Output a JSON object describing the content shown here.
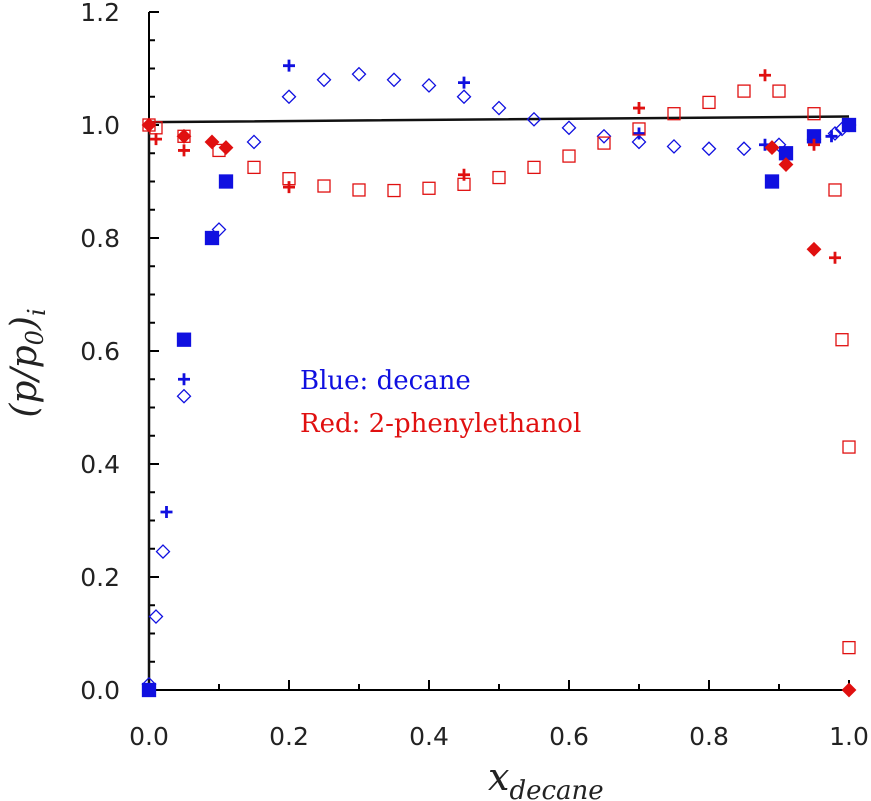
{
  "chart_data": {
    "type": "scatter",
    "title": "",
    "xlabel": {
      "base": "x",
      "sub": "decane"
    },
    "ylabel": {
      "open": "(",
      "p1": "p",
      "slash": "/",
      "p2": "p",
      "p2sub": "0",
      "close": ")",
      "sub": "i"
    },
    "xlim": [
      0.0,
      1.0
    ],
    "ylim": [
      0.0,
      1.2
    ],
    "x_ticks": [
      "0.0",
      "0.2",
      "0.4",
      "0.6",
      "0.8",
      "1.0"
    ],
    "y_ticks": [
      "0.0",
      "0.2",
      "0.4",
      "0.6",
      "0.8",
      "1.0",
      "1.2"
    ],
    "grid": false,
    "annotations": [
      {
        "text": "Blue: decane",
        "color": "#1010e0"
      },
      {
        "text": "Red: 2-phenylethanol",
        "color": "#e01010"
      }
    ],
    "colors": {
      "blue": "#1010e0",
      "red": "#e01010",
      "line": "#111111",
      "axis": "#000000"
    },
    "line": {
      "x": [
        0.0,
        0.0,
        1.0
      ],
      "y": [
        0.0,
        1.005,
        1.015
      ]
    },
    "series": [
      {
        "color": "blue",
        "marker": "diamond-open",
        "points": [
          [
            0.0,
            0.01
          ],
          [
            0.01,
            0.13
          ],
          [
            0.02,
            0.245
          ],
          [
            0.05,
            0.52
          ],
          [
            0.1,
            0.815
          ],
          [
            0.15,
            0.97
          ],
          [
            0.2,
            1.05
          ],
          [
            0.25,
            1.08
          ],
          [
            0.3,
            1.09
          ],
          [
            0.35,
            1.08
          ],
          [
            0.4,
            1.07
          ],
          [
            0.45,
            1.05
          ],
          [
            0.5,
            1.03
          ],
          [
            0.55,
            1.01
          ],
          [
            0.6,
            0.995
          ],
          [
            0.65,
            0.98
          ],
          [
            0.7,
            0.97
          ],
          [
            0.75,
            0.962
          ],
          [
            0.8,
            0.958
          ],
          [
            0.85,
            0.958
          ],
          [
            0.9,
            0.965
          ],
          [
            0.95,
            0.975
          ],
          [
            0.98,
            0.985
          ],
          [
            0.99,
            0.993
          ],
          [
            1.0,
            1.0
          ]
        ]
      },
      {
        "color": "blue",
        "marker": "square-filled",
        "points": [
          [
            0.0,
            0.0
          ],
          [
            0.05,
            0.62
          ],
          [
            0.09,
            0.8
          ],
          [
            0.11,
            0.9
          ],
          [
            0.89,
            0.9
          ],
          [
            0.91,
            0.95
          ],
          [
            0.95,
            0.98
          ],
          [
            1.0,
            1.0
          ]
        ]
      },
      {
        "color": "blue",
        "marker": "plus",
        "points": [
          [
            0.025,
            0.315
          ],
          [
            0.05,
            0.55
          ],
          [
            0.2,
            1.105
          ],
          [
            0.45,
            1.075
          ],
          [
            0.7,
            0.985
          ],
          [
            0.88,
            0.965
          ],
          [
            0.975,
            0.98
          ]
        ]
      },
      {
        "color": "red",
        "marker": "square-open",
        "points": [
          [
            0.0,
            1.0
          ],
          [
            0.01,
            0.995
          ],
          [
            0.05,
            0.98
          ],
          [
            0.1,
            0.955
          ],
          [
            0.15,
            0.925
          ],
          [
            0.2,
            0.905
          ],
          [
            0.25,
            0.892
          ],
          [
            0.3,
            0.885
          ],
          [
            0.35,
            0.884
          ],
          [
            0.4,
            0.888
          ],
          [
            0.45,
            0.895
          ],
          [
            0.5,
            0.907
          ],
          [
            0.55,
            0.925
          ],
          [
            0.6,
            0.945
          ],
          [
            0.65,
            0.968
          ],
          [
            0.7,
            0.993
          ],
          [
            0.75,
            1.02
          ],
          [
            0.8,
            1.04
          ],
          [
            0.85,
            1.06
          ],
          [
            0.9,
            1.06
          ],
          [
            0.95,
            1.02
          ],
          [
            0.98,
            0.885
          ],
          [
            0.99,
            0.62
          ],
          [
            1.0,
            0.43
          ],
          [
            1.0,
            0.075
          ]
        ]
      },
      {
        "color": "red",
        "marker": "diamond-filled",
        "points": [
          [
            0.0,
            1.0
          ],
          [
            0.05,
            0.98
          ],
          [
            0.09,
            0.97
          ],
          [
            0.11,
            0.96
          ],
          [
            0.89,
            0.96
          ],
          [
            0.91,
            0.93
          ],
          [
            0.95,
            0.78
          ],
          [
            1.0,
            0.0
          ]
        ]
      },
      {
        "color": "red",
        "marker": "plus",
        "points": [
          [
            0.01,
            0.975
          ],
          [
            0.05,
            0.955
          ],
          [
            0.2,
            0.89
          ],
          [
            0.45,
            0.912
          ],
          [
            0.7,
            1.03
          ],
          [
            0.88,
            1.088
          ],
          [
            0.95,
            0.965
          ],
          [
            0.98,
            0.765
          ]
        ]
      }
    ]
  }
}
